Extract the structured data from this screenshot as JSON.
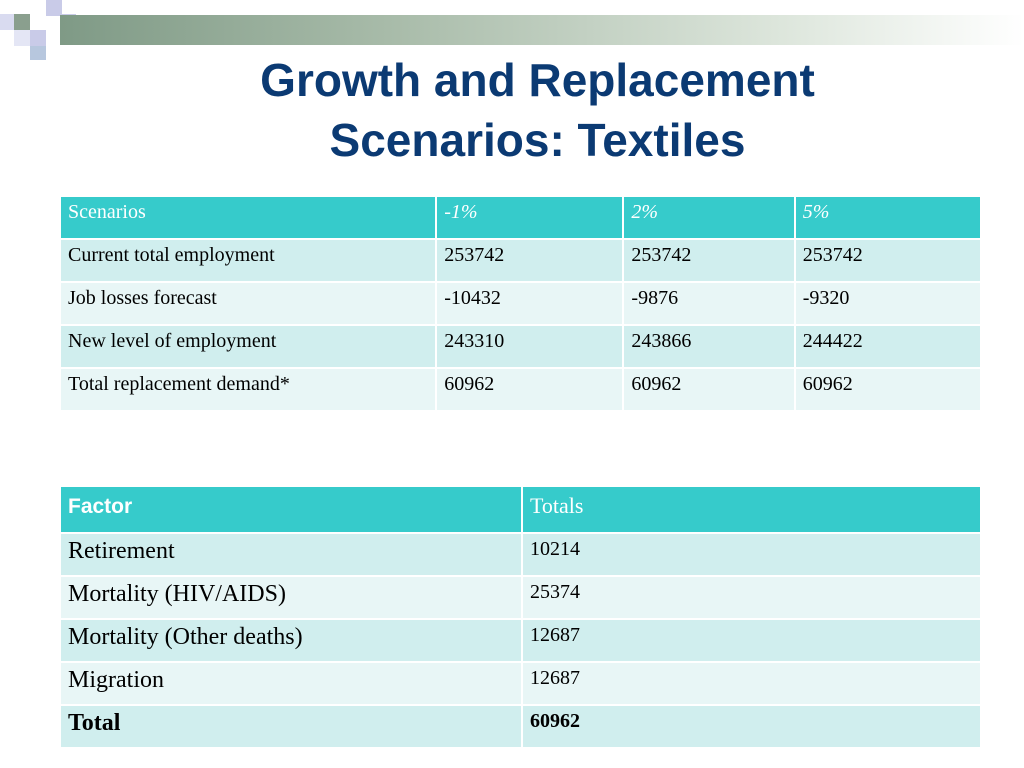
{
  "title": {
    "line1": "Growth and Replacement",
    "line2": "Scenarios:  Textiles"
  },
  "scenarios_table": {
    "headers": [
      "Scenarios",
      "-1%",
      "2%",
      "5%"
    ],
    "rows": [
      [
        "Current total employment",
        "253742",
        "253742",
        "253742"
      ],
      [
        "Job losses forecast",
        "-10432",
        "-9876",
        "-9320"
      ],
      [
        "New level of employment",
        "243310",
        "243866",
        "244422"
      ],
      [
        "Total replacement demand*",
        "60962",
        "60962",
        "60962"
      ]
    ]
  },
  "factor_table": {
    "headers": [
      "Factor",
      "Totals"
    ],
    "rows": [
      [
        "Retirement",
        "10214"
      ],
      [
        "Mortality (HIV/AIDS)",
        "25374"
      ],
      [
        "Mortality (Other deaths)",
        "12687"
      ],
      [
        "Migration",
        "12687"
      ],
      [
        "Total",
        "60962"
      ]
    ]
  },
  "colors": {
    "title": "#0b3a73",
    "header_fill": "#36cbcb",
    "row_fill_dark": "#d0eeee",
    "row_fill_light": "#e8f6f6"
  }
}
